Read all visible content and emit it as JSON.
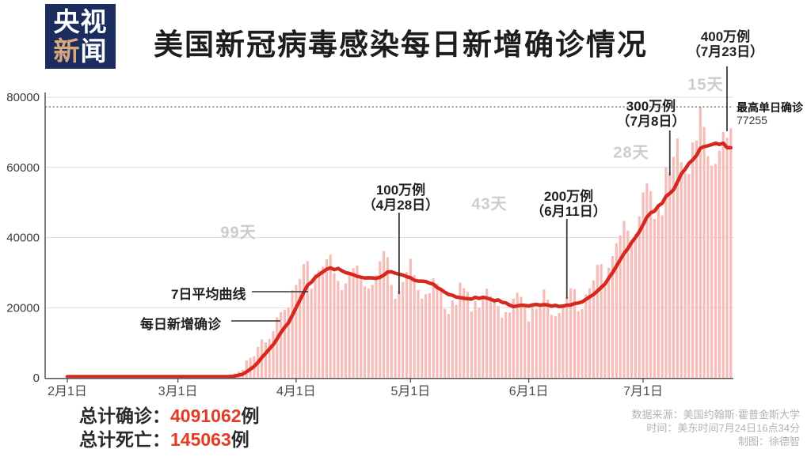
{
  "brand": {
    "name": "央视新闻",
    "row1": "央视",
    "row2_char1": "新",
    "row2_char2": "闻",
    "bg_color": "#1b2c5e",
    "accent_char_color": "#d8a87e"
  },
  "header": {
    "title": "美国新冠病毒感染每日新增确诊情况"
  },
  "chart_data": {
    "type": "bar",
    "title": "美国新冠病毒感染每日新增确诊情况",
    "bar_series_name": "每日新增确诊",
    "line_series_name": "7日平均曲线",
    "x_tick_labels": [
      "2月1日",
      "3月1日",
      "4月1日",
      "5月1日",
      "6月1日",
      "7月1日"
    ],
    "x_tick_day_index": [
      0,
      29,
      60,
      90,
      121,
      151
    ],
    "y_ticks": [
      0,
      20000,
      40000,
      60000,
      80000
    ],
    "ylim": [
      0,
      80000
    ],
    "grid": true,
    "daily_values": [
      1,
      0,
      3,
      0,
      0,
      2,
      0,
      0,
      3,
      0,
      2,
      4,
      2,
      1,
      0,
      0,
      6,
      3,
      2,
      1,
      3,
      19,
      0,
      28,
      6,
      23,
      25,
      60,
      8,
      24,
      20,
      31,
      68,
      45,
      119,
      114,
      64,
      147,
      225,
      290,
      278,
      414,
      530,
      760,
      1237,
      1797,
      2270,
      4964,
      5734,
      6141,
      8821,
      10934,
      10115,
      11075,
      13355,
      17224,
      18691,
      19452,
      20065,
      24998,
      26473,
      28219,
      32425,
      33267,
      25400,
      29595,
      30613,
      31709,
      33752,
      35098,
      29861,
      27620,
      25023,
      26922,
      29916,
      31281,
      31967,
      28085,
      26054,
      25508,
      26513,
      29266,
      33264,
      36188,
      34386,
      26509,
      22541,
      24844,
      27327,
      30158,
      33955,
      29288,
      24972,
      22593,
      23841,
      24128,
      28369,
      26906,
      25253,
      19731,
      18196,
      22048,
      20782,
      27143,
      25508,
      24487,
      18873,
      21841,
      19970,
      22977,
      25434,
      23290,
      21467,
      20522,
      17140,
      18721,
      18611,
      22603,
      24266,
      23079,
      20058,
      16089,
      20801,
      19699,
      21140,
      25176,
      22317,
      17919,
      17598,
      18500,
      20486,
      22999,
      25540,
      25300,
      19029,
      19543,
      23774,
      25513,
      27762,
      32218,
      32411,
      26079,
      31402,
      34700,
      38386,
      40588,
      44726,
      41989,
      38673,
      41075,
      46042,
      52898,
      55442,
      53213,
      45300,
      49199,
      46329,
      60021,
      58601,
      63004,
      68241,
      61488,
      58349,
      58083,
      67140,
      67632,
      77255,
      71558,
      63201,
      60469,
      60971,
      64771,
      70106,
      68457,
      71200
    ],
    "max_line": {
      "label": "最高单日确诊",
      "value": 77255
    },
    "milestones": [
      {
        "label": "100万例",
        "date_label": "（4月28日）",
        "day_index": 87
      },
      {
        "label": "200万例",
        "date_label": "（6月11日）",
        "day_index": 131
      },
      {
        "label": "300万例",
        "date_label": "（7月8日）",
        "day_index": 158
      },
      {
        "label": "400万例",
        "date_label": "（7月23日）",
        "day_index": 173
      }
    ],
    "intervals": [
      {
        "label": "99天"
      },
      {
        "label": "43天"
      },
      {
        "label": "28天"
      },
      {
        "label": "15天"
      }
    ],
    "colors": {
      "bar": "#f8bcb8",
      "line": "#d5291f",
      "grid": "#dddddd",
      "axis": "#555555",
      "annotation_line": "#3c3c3c",
      "dotted_line": "#555555",
      "tick_text": "#3a3a3a"
    }
  },
  "callouts": {
    "avg_line": "7日平均曲线",
    "daily_bars": "每日新增确诊"
  },
  "totals": {
    "confirmed_label": "总计确诊：",
    "confirmed_value": "4091062",
    "confirmed_unit": "例",
    "deaths_label": "总计死亡：",
    "deaths_value": "145063",
    "deaths_unit": "例",
    "value_color": "#e23d23"
  },
  "source": {
    "line1": "数据来源：美国约翰斯·霍普金斯大学",
    "line2": "时间：美东时间7月24日16点34分",
    "line3": "制图：徐德智"
  }
}
